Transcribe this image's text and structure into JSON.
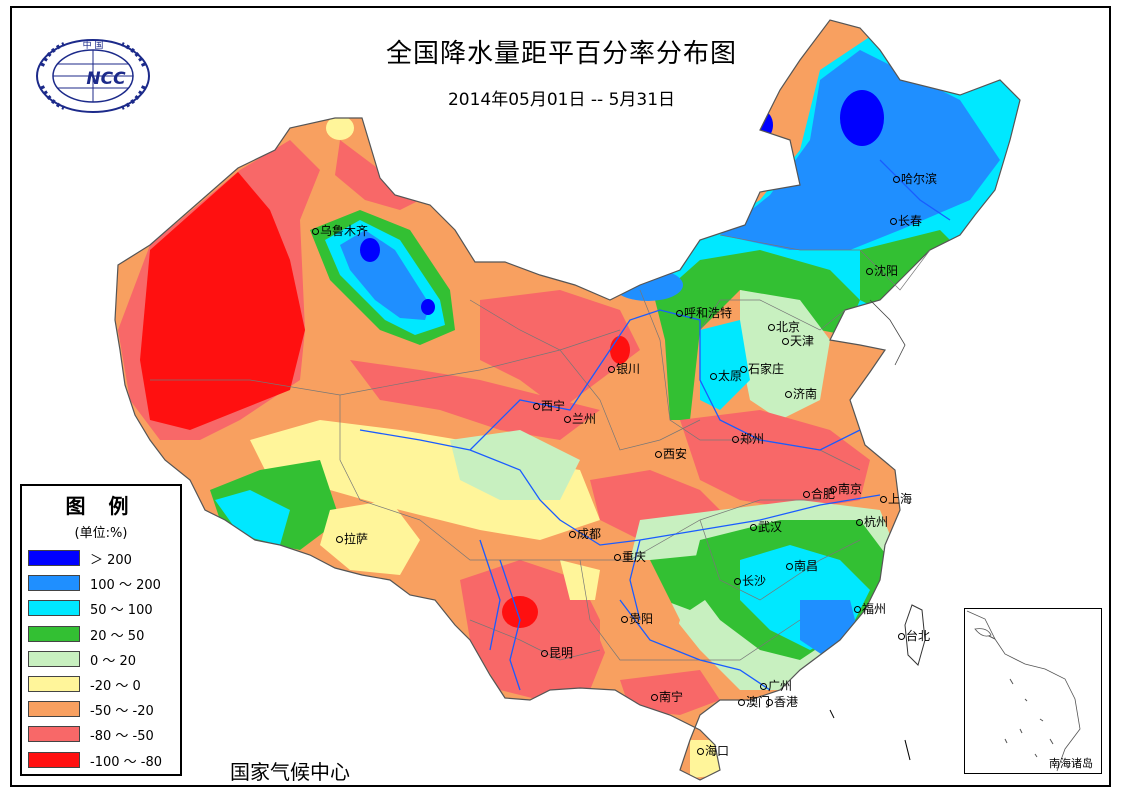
{
  "title": "全国降水量距平百分率分布图",
  "subtitle": "2014年05月01日 -- 5月31日",
  "organization": "国家气候中心",
  "logo": {
    "text_top": "中 国",
    "text_main": "NCC"
  },
  "legend": {
    "title": "图 例",
    "unit": "(单位:%)",
    "items": [
      {
        "label": "＞ 200",
        "color": "#0000ff"
      },
      {
        "label": "100 ～ 200",
        "color": "#1f8fff"
      },
      {
        "label": "50 ～ 100",
        "color": "#00e8ff"
      },
      {
        "label": "20 ～ 50",
        "color": "#33c033"
      },
      {
        "label": "0 ～ 20",
        "color": "#c8f0c0"
      },
      {
        "label": "-20 ～ 0",
        "color": "#fff59a"
      },
      {
        "label": "-50 ～ -20",
        "color": "#f8a060"
      },
      {
        "label": "-80 ～ -50",
        "color": "#f86868"
      },
      {
        "label": "-100 ～ -80",
        "color": "#ff1010"
      }
    ]
  },
  "inset_label": "南海诸岛",
  "cities": [
    {
      "name": "乌鲁木齐"
    },
    {
      "name": "哈尔滨"
    },
    {
      "name": "长春"
    },
    {
      "name": "沈阳"
    },
    {
      "name": "呼和浩特"
    },
    {
      "name": "北京"
    },
    {
      "name": "天津"
    },
    {
      "name": "石家庄"
    },
    {
      "name": "太原"
    },
    {
      "name": "济南"
    },
    {
      "name": "银川"
    },
    {
      "name": "西宁"
    },
    {
      "name": "兰州"
    },
    {
      "name": "西安"
    },
    {
      "name": "郑州"
    },
    {
      "name": "合肥"
    },
    {
      "name": "南京"
    },
    {
      "name": "上海"
    },
    {
      "name": "杭州"
    },
    {
      "name": "武汉"
    },
    {
      "name": "成都"
    },
    {
      "name": "重庆"
    },
    {
      "name": "拉萨"
    },
    {
      "name": "长沙"
    },
    {
      "name": "南昌"
    },
    {
      "name": "福州"
    },
    {
      "name": "贵阳"
    },
    {
      "name": "昆明"
    },
    {
      "name": "台北"
    },
    {
      "name": "广州"
    },
    {
      "name": "南宁"
    },
    {
      "name": "澳门"
    },
    {
      "name": "香港"
    },
    {
      "name": "海口"
    }
  ]
}
